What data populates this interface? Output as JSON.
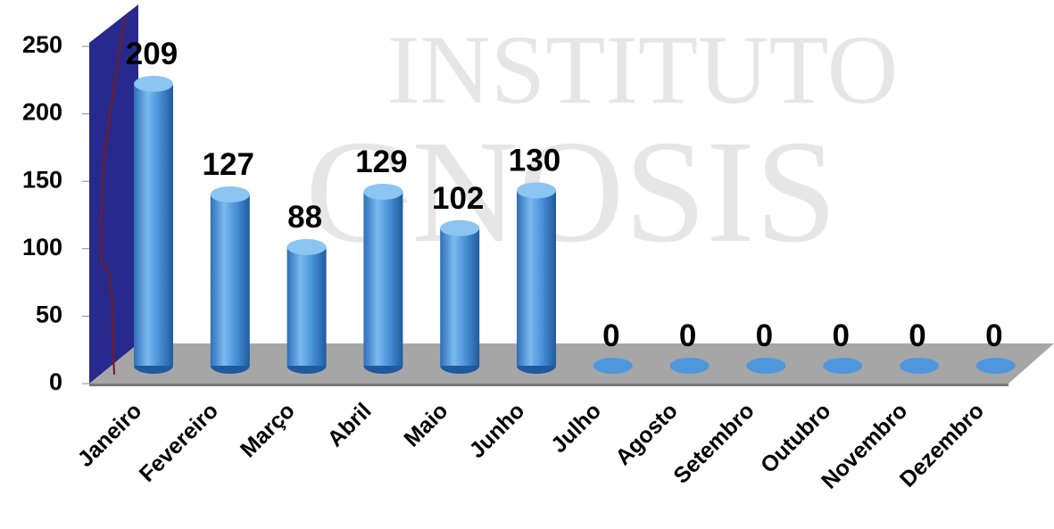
{
  "chart_data": {
    "type": "bar3d",
    "watermark": [
      "INSTITUTO",
      "GNOSIS"
    ],
    "categories": [
      "Janeiro",
      "Fevereiro",
      "Março",
      "Abril",
      "Maio",
      "Junho",
      "Julho",
      "Agosto",
      "Setembro",
      "Outubro",
      "Novembro",
      "Dezembro"
    ],
    "values": [
      209,
      127,
      88,
      129,
      102,
      130,
      0,
      0,
      0,
      0,
      0,
      0
    ],
    "color": "#4f97dc",
    "ylim": [
      0,
      250
    ],
    "yticks": [
      0,
      50,
      100,
      150,
      200,
      250
    ]
  }
}
